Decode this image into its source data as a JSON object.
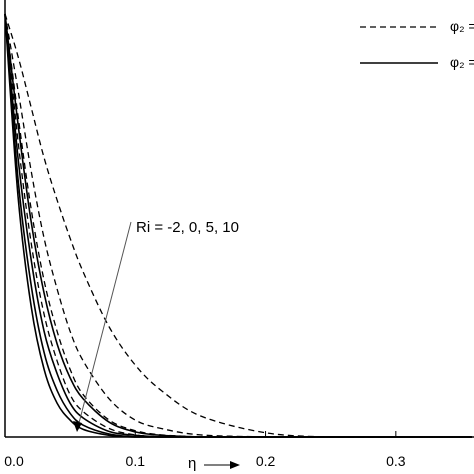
{
  "chart_data": {
    "type": "line",
    "xlabel": "η",
    "ylabel": "",
    "xlim": [
      0,
      0.36
    ],
    "ylim": [
      0,
      1
    ],
    "x_ticks": [
      "0.0",
      "0.1",
      "0.2",
      "0.3"
    ],
    "x_tick_values": [
      0,
      0.1,
      0.2,
      0.3
    ],
    "annotation": "Ri = -2, 0, 5, 10",
    "legend": {
      "placement": "top-right",
      "entries": [
        {
          "label": "φ₂ =",
          "style": "dashed"
        },
        {
          "label": "φ₂ =",
          "style": "solid"
        }
      ]
    },
    "series": [
      {
        "group": "dashed",
        "x": [
          0,
          0.01,
          0.02,
          0.03,
          0.04,
          0.05,
          0.06,
          0.08,
          0.1,
          0.12,
          0.15,
          0.2,
          0.25,
          0.3
        ],
        "y": [
          1.0,
          0.9,
          0.78,
          0.66,
          0.56,
          0.47,
          0.39,
          0.26,
          0.17,
          0.11,
          0.05,
          0.01,
          0.0,
          0.0
        ]
      },
      {
        "group": "dashed",
        "x": [
          0,
          0.01,
          0.02,
          0.03,
          0.04,
          0.05,
          0.06,
          0.08,
          0.1,
          0.12,
          0.15,
          0.2
        ],
        "y": [
          1.0,
          0.82,
          0.63,
          0.47,
          0.35,
          0.25,
          0.18,
          0.09,
          0.04,
          0.02,
          0.005,
          0.0
        ]
      },
      {
        "group": "dashed",
        "x": [
          0,
          0.01,
          0.02,
          0.03,
          0.04,
          0.05,
          0.06,
          0.08,
          0.1,
          0.12,
          0.15
        ],
        "y": [
          1.0,
          0.76,
          0.54,
          0.37,
          0.25,
          0.16,
          0.1,
          0.04,
          0.015,
          0.005,
          0.0
        ]
      },
      {
        "group": "dashed",
        "x": [
          0,
          0.01,
          0.02,
          0.03,
          0.04,
          0.05,
          0.06,
          0.08,
          0.1,
          0.12
        ],
        "y": [
          1.0,
          0.7,
          0.46,
          0.29,
          0.18,
          0.1,
          0.06,
          0.02,
          0.005,
          0.0
        ]
      },
      {
        "group": "solid",
        "x": [
          0,
          0.01,
          0.02,
          0.03,
          0.04,
          0.05,
          0.06,
          0.08,
          0.1,
          0.12,
          0.15
        ],
        "y": [
          1.0,
          0.74,
          0.51,
          0.34,
          0.22,
          0.14,
          0.09,
          0.035,
          0.012,
          0.004,
          0.0
        ]
      },
      {
        "group": "solid",
        "x": [
          0,
          0.01,
          0.02,
          0.03,
          0.04,
          0.05,
          0.06,
          0.08,
          0.1,
          0.12
        ],
        "y": [
          1.0,
          0.66,
          0.42,
          0.25,
          0.15,
          0.08,
          0.045,
          0.013,
          0.004,
          0.0
        ]
      },
      {
        "group": "solid",
        "x": [
          0,
          0.01,
          0.02,
          0.03,
          0.04,
          0.05,
          0.06,
          0.08,
          0.1
        ],
        "y": [
          1.0,
          0.61,
          0.36,
          0.2,
          0.11,
          0.056,
          0.028,
          0.007,
          0.0
        ]
      },
      {
        "group": "solid",
        "x": [
          0,
          0.01,
          0.02,
          0.03,
          0.04,
          0.05,
          0.06,
          0.08,
          0.1
        ],
        "y": [
          1.0,
          0.57,
          0.31,
          0.16,
          0.08,
          0.04,
          0.018,
          0.004,
          0.0
        ]
      }
    ]
  }
}
